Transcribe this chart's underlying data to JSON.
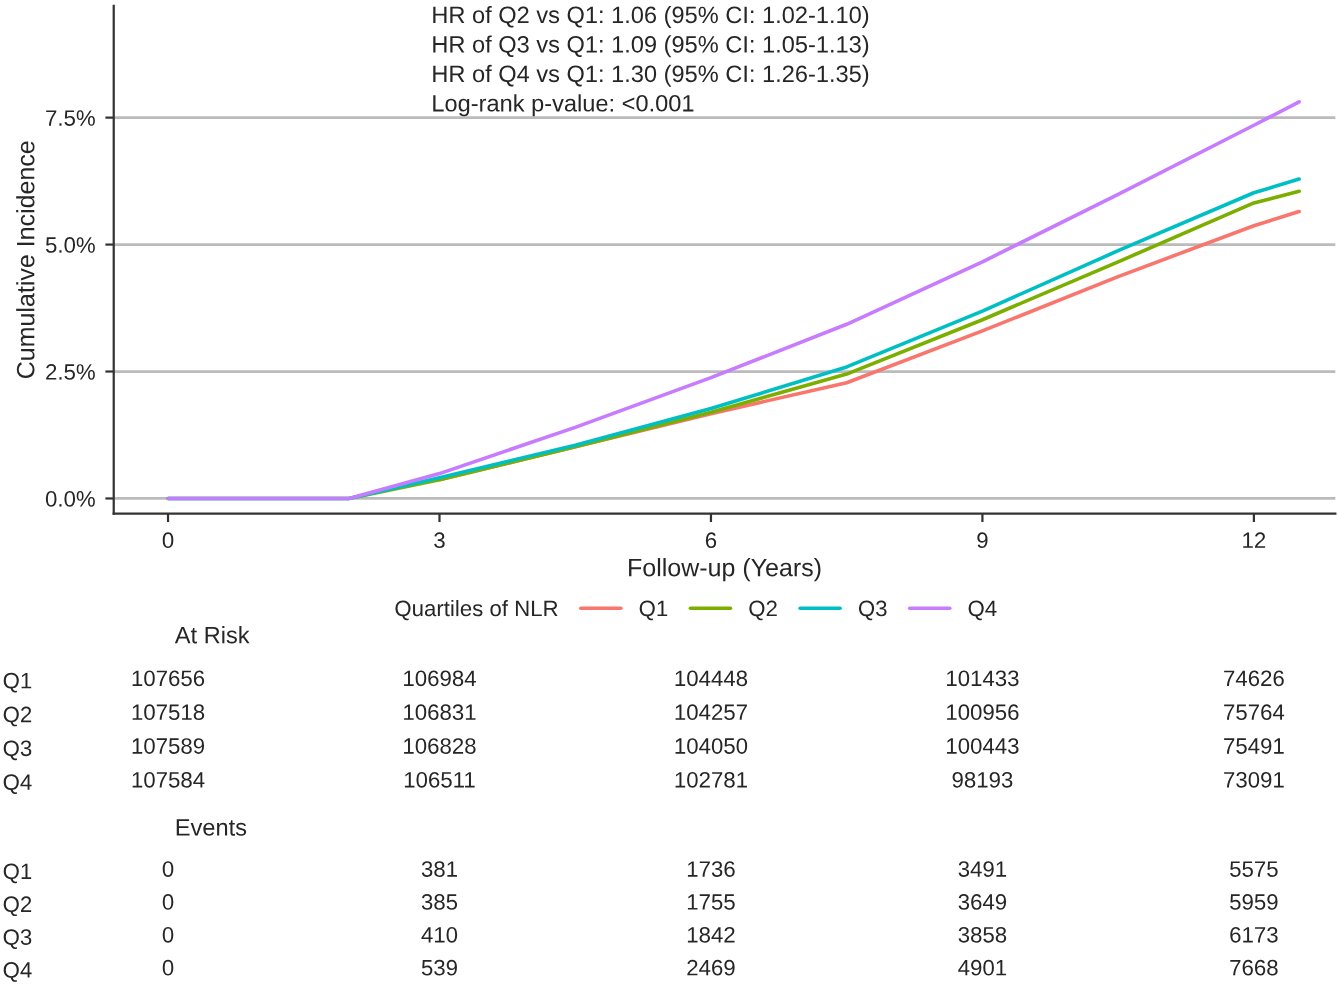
{
  "chart_data": [
    {
      "type": "line",
      "xlabel": "Follow-up (Years)",
      "ylabel": "Cumulative Incidence",
      "legend_title": "Quartiles of NLR",
      "legend": "bottom",
      "grid": "y",
      "xlim": [
        -0.6,
        12.9
      ],
      "ylim": [
        -0.3,
        9.7
      ],
      "xticks": [
        0,
        3,
        6,
        9,
        12
      ],
      "yticks": [
        {
          "value": 0,
          "label": "0.0%"
        },
        {
          "value": 2.5,
          "label": "2.5%"
        },
        {
          "value": 5,
          "label": "5.0%"
        },
        {
          "value": 7.5,
          "label": "7.5%"
        }
      ],
      "x": [
        0,
        2,
        3,
        4.5,
        6,
        7.5,
        9,
        10.5,
        12,
        12.5
      ],
      "series": [
        {
          "name": "Q1",
          "color": "#f8766d",
          "values": [
            null,
            null,
            0.37,
            1.02,
            1.67,
            2.28,
            3.3,
            4.37,
            5.37,
            5.65
          ]
        },
        {
          "name": "Q2",
          "color": "#7cae00",
          "values": [
            0,
            0,
            0.37,
            1.02,
            1.7,
            2.45,
            3.52,
            4.66,
            5.82,
            6.05
          ]
        },
        {
          "name": "Q3",
          "color": "#00bfc4",
          "values": [
            0,
            0,
            0.41,
            1.05,
            1.77,
            2.59,
            3.69,
            4.88,
            6.02,
            6.29
          ]
        },
        {
          "name": "Q4",
          "color": "#c77cff",
          "values": [
            0,
            0,
            0.49,
            1.4,
            2.38,
            3.43,
            4.66,
            5.99,
            7.35,
            7.81
          ]
        }
      ],
      "annotations": [
        "HR of Q2 vs Q1: 1.06 (95% CI: 1.02-1.10)",
        "HR of Q3 vs Q1: 1.09 (95% CI: 1.05-1.13)",
        "HR of Q4 vs Q1: 1.30 (95% CI: 1.26-1.35)",
        "Log-rank p-value: <0.001"
      ]
    },
    {
      "type": "heatmap",
      "title": "At Risk",
      "data_labels": true,
      "categories": [
        null,
        null,
        null,
        null,
        null
      ],
      "y_categories": [
        "Q1",
        "Q2",
        "Q3",
        "Q4"
      ],
      "cells": [
        [
          107656,
          106984,
          104448,
          101433,
          74626
        ],
        [
          107518,
          106831,
          104257,
          100956,
          75764
        ],
        [
          107589,
          106828,
          104050,
          100443,
          75491
        ],
        [
          107584,
          106511,
          102781,
          98193,
          73091
        ]
      ]
    },
    {
      "type": "heatmap",
      "title": "Events",
      "data_labels": true,
      "categories": [
        null,
        null,
        null,
        null,
        null
      ],
      "y_categories": [
        "Q1",
        "Q2",
        "Q3",
        "Q4"
      ],
      "cells": [
        [
          0,
          381,
          1736,
          3491,
          5575
        ],
        [
          0,
          385,
          1755,
          3649,
          5959
        ],
        [
          0,
          410,
          1842,
          3858,
          6173
        ],
        [
          0,
          539,
          2469,
          4901,
          7668
        ]
      ]
    }
  ]
}
